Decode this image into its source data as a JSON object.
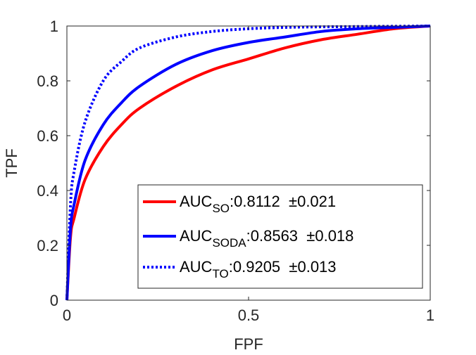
{
  "chart_data": {
    "type": "line",
    "xlabel": "FPF",
    "ylabel": "TPF",
    "xlim": [
      0,
      1
    ],
    "ylim": [
      0,
      1
    ],
    "x_ticks": [
      "0",
      "0.5",
      "1"
    ],
    "y_ticks": [
      "0",
      "0.2",
      "0.4",
      "0.6",
      "0.8",
      "1"
    ],
    "grid": false,
    "legend_position": "bottom-right",
    "series": [
      {
        "legend_main": "AUC",
        "legend_sub": "SO",
        "legend_value": ":0.8112  ±0.021",
        "color": "#ff0000",
        "style": "solid",
        "auc": 0.8112,
        "x": [
          0,
          0.01,
          0.02,
          0.05,
          0.1,
          0.15,
          0.2,
          0.3,
          0.4,
          0.5,
          0.6,
          0.7,
          0.8,
          0.9,
          1.0
        ],
        "y": [
          0,
          0.23,
          0.3,
          0.44,
          0.56,
          0.64,
          0.7,
          0.78,
          0.84,
          0.88,
          0.92,
          0.95,
          0.97,
          0.99,
          1.0
        ]
      },
      {
        "legend_main": "AUC",
        "legend_sub": "SODA",
        "legend_value": ":0.8563  ±0.018",
        "color": "#0000ff",
        "style": "solid",
        "auc": 0.8563,
        "x": [
          0,
          0.01,
          0.02,
          0.05,
          0.1,
          0.15,
          0.2,
          0.3,
          0.4,
          0.5,
          0.6,
          0.7,
          0.8,
          0.9,
          1.0
        ],
        "y": [
          0,
          0.26,
          0.35,
          0.51,
          0.64,
          0.72,
          0.78,
          0.86,
          0.91,
          0.94,
          0.96,
          0.98,
          0.99,
          0.995,
          1.0
        ]
      },
      {
        "legend_main": "AUC",
        "legend_sub": "TO",
        "legend_value": ":0.9205  ±0.013",
        "color": "#0000ff",
        "style": "dotted",
        "auc": 0.9205,
        "x": [
          0,
          0.01,
          0.02,
          0.05,
          0.1,
          0.15,
          0.2,
          0.3,
          0.4,
          0.5,
          0.6,
          0.7,
          0.8,
          0.9,
          1.0
        ],
        "y": [
          0,
          0.35,
          0.47,
          0.65,
          0.8,
          0.87,
          0.92,
          0.96,
          0.98,
          0.99,
          0.995,
          0.997,
          0.998,
          0.999,
          1.0
        ]
      }
    ]
  }
}
